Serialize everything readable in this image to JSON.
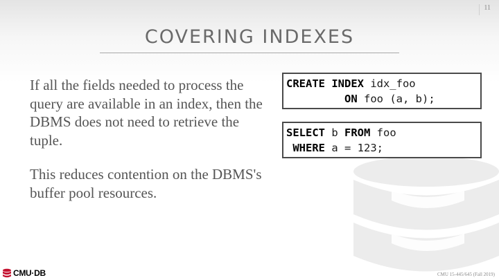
{
  "slide": {
    "page_number": "11",
    "title": "COVERING INDEXES",
    "paragraphs": [
      "If all the fields needed to process the query are available in an index, then the DBMS does not need to retrieve the tuple.",
      "This reduces contention on the DBMS's buffer pool resources."
    ],
    "code_create": {
      "kw1": "CREATE INDEX",
      "rest1": " idx_foo",
      "indent2": "         ",
      "kw2": "ON",
      "rest2": " foo (a, b);"
    },
    "code_select": {
      "kw1": "SELECT",
      "mid1": " b ",
      "kw2": "FROM",
      "rest1": " foo",
      "indent2": " ",
      "kw3": "WHERE",
      "rest2": " a = 123;"
    }
  },
  "footer": {
    "logo_text": "CMU·DB",
    "course": "CMU 15-445/645 (Fall 2019)"
  },
  "colors": {
    "logo_red": "#c41230",
    "watermark": "#ececec"
  }
}
